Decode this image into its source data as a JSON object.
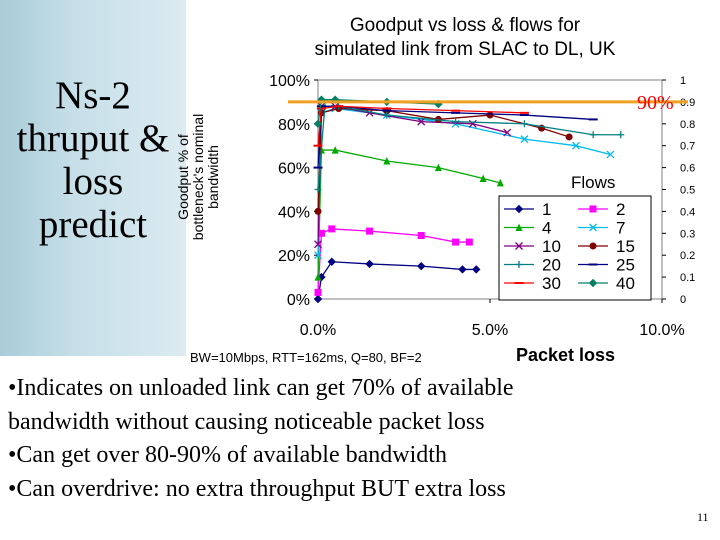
{
  "side_title": [
    "Ns-2",
    "thruput &",
    "loss",
    "predict"
  ],
  "colors": {
    "threshold": "#f0a020",
    "sidebar": "#c6dfe8"
  },
  "bullets": [
    "•Indicates on unloaded link can get 70% of available",
    "bandwidth without causing noticeable packet loss",
    "•Can get over 80-90% of available bandwidth",
    "•Can overdrive: no extra throughput BUT extra loss"
  ],
  "page_number": "11",
  "chart_data": {
    "type": "line",
    "title": [
      "Goodput vs loss & flows for",
      "simulated link from SLAC to DL, UK"
    ],
    "ylabel": [
      "Goodput % of",
      "bottleneck's nominal",
      "bandwidth"
    ],
    "xlabel": "Packet loss",
    "params": "BW=10Mbps, RTT=162ms, Q=80, BF=2",
    "xlim": [
      0,
      10
    ],
    "ylim": [
      0,
      100
    ],
    "x_ticks": [
      "0.0%",
      "5.0%",
      "10.0%"
    ],
    "y_ticks": [
      "0%",
      "20%",
      "40%",
      "60%",
      "80%",
      "100%"
    ],
    "y2_ticks": [
      "0",
      "0.1",
      "0.2",
      "0.3",
      "0.4",
      "0.5",
      "0.6",
      "0.7",
      "0.8",
      "0.9",
      "1"
    ],
    "legend_title": "Flows",
    "threshold": {
      "value": 90,
      "label": "90%"
    },
    "series": [
      {
        "name": "1",
        "color": "#000080",
        "marker": "diamond",
        "x": [
          0,
          0.1,
          0.4,
          1.5,
          3.0,
          4.2,
          4.6
        ],
        "y": [
          0,
          10,
          17,
          16,
          15,
          13.5,
          13.5
        ]
      },
      {
        "name": "2",
        "color": "#ff00ff",
        "marker": "square",
        "x": [
          0,
          0.1,
          0.4,
          1.5,
          3.0,
          4.0,
          4.4
        ],
        "y": [
          3,
          30,
          32,
          31,
          29,
          26,
          26
        ]
      },
      {
        "name": "4",
        "color": "#00aa00",
        "marker": "triangle",
        "x": [
          0,
          0.1,
          0.5,
          2.0,
          3.5,
          4.8,
          5.3
        ],
        "y": [
          10,
          68,
          68,
          63,
          60,
          55,
          53
        ]
      },
      {
        "name": "7",
        "color": "#00bbee",
        "marker": "x",
        "x": [
          0,
          0.1,
          0.5,
          2.0,
          4.0,
          6.0,
          7.5,
          8.5
        ],
        "y": [
          20,
          85,
          87,
          84,
          80,
          73,
          70,
          66
        ]
      },
      {
        "name": "10",
        "color": "#800080",
        "marker": "x",
        "x": [
          0,
          0.1,
          0.5,
          1.5,
          3.0,
          4.5,
          5.5
        ],
        "y": [
          25,
          88,
          88,
          85,
          81,
          80,
          76
        ]
      },
      {
        "name": "15",
        "color": "#800000",
        "marker": "circle",
        "x": [
          0,
          0.1,
          0.6,
          2.0,
          3.5,
          5.0,
          6.5,
          7.3
        ],
        "y": [
          40,
          85,
          87,
          86,
          82,
          84,
          78,
          74
        ]
      },
      {
        "name": "20",
        "color": "#008080",
        "marker": "plus",
        "x": [
          0,
          0.2,
          0.6,
          2.0,
          4.0,
          6.0,
          8.0,
          8.8
        ],
        "y": [
          50,
          88,
          88,
          84,
          81,
          80,
          75,
          75
        ]
      },
      {
        "name": "25",
        "color": "#000080",
        "marker": "dash",
        "x": [
          0,
          0.1,
          0.6,
          2.0,
          4.0,
          6.0,
          8.0
        ],
        "y": [
          60,
          88,
          88,
          86,
          85,
          84,
          82
        ]
      },
      {
        "name": "30",
        "color": "#ff0000",
        "marker": "dash",
        "x": [
          0,
          0.1,
          0.6,
          2.0,
          4.0,
          6.0
        ],
        "y": [
          70,
          87,
          88,
          87,
          86,
          85
        ]
      },
      {
        "name": "40",
        "color": "#008060",
        "marker": "diamond",
        "x": [
          0,
          0.1,
          0.5,
          2.0,
          3.5
        ],
        "y": [
          80,
          91,
          91,
          90,
          89
        ]
      }
    ]
  }
}
